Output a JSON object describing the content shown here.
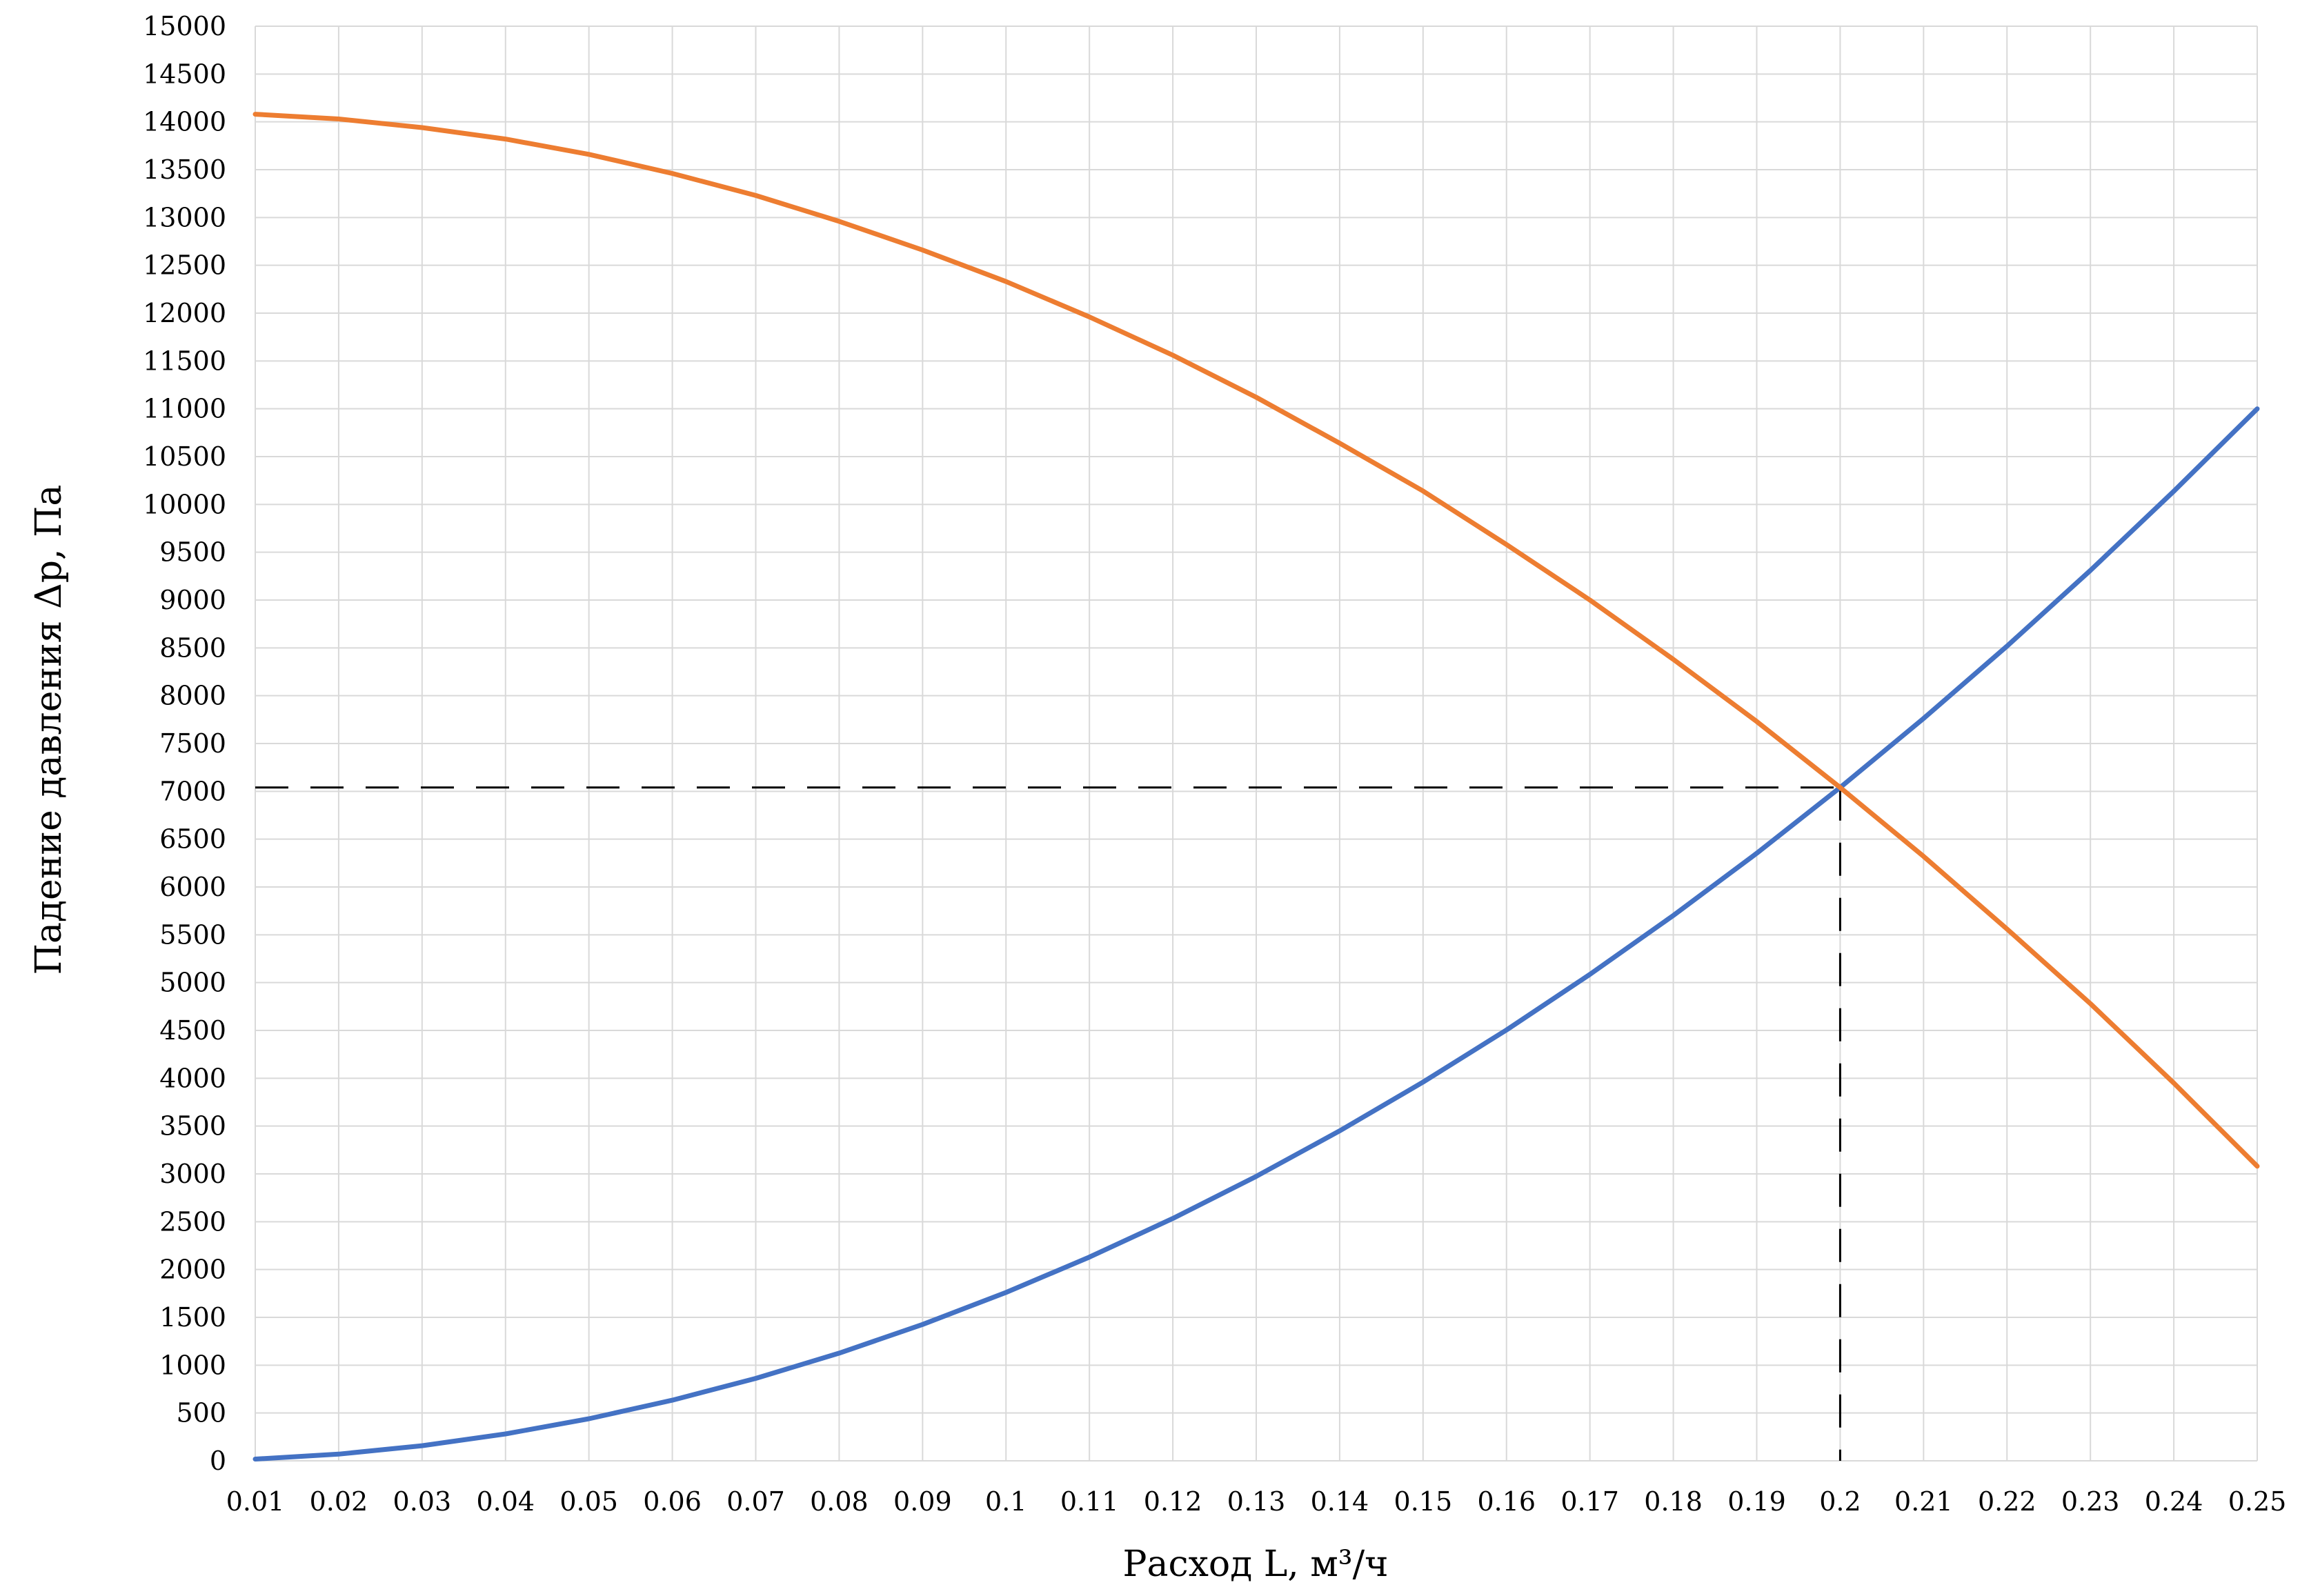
{
  "chart_data": {
    "type": "line",
    "xlabel": "Расход L, м³/ч",
    "ylabel": "Падение давления Δp, Па",
    "x": [
      0.01,
      0.02,
      0.03,
      0.04,
      0.05,
      0.06,
      0.07,
      0.08,
      0.09,
      0.1,
      0.11,
      0.12,
      0.13,
      0.14,
      0.15,
      0.16,
      0.17,
      0.18,
      0.19,
      0.2,
      0.21,
      0.22,
      0.23,
      0.24,
      0.25
    ],
    "x_tick_labels": [
      "0.01",
      "0.02",
      "0.03",
      "0.04",
      "0.05",
      "0.06",
      "0.07",
      "0.08",
      "0.09",
      "0.1",
      "0.11",
      "0.12",
      "0.13",
      "0.14",
      "0.15",
      "0.16",
      "0.17",
      "0.18",
      "0.19",
      "0.2",
      "0.21",
      "0.22",
      "0.23",
      "0.24",
      "0.25"
    ],
    "y_tick_labels": [
      "0",
      "500",
      "1000",
      "1500",
      "2000",
      "2500",
      "3000",
      "3500",
      "4000",
      "4500",
      "5000",
      "5500",
      "6000",
      "6500",
      "7000",
      "7500",
      "8000",
      "8500",
      "9000",
      "9500",
      "10000",
      "10500",
      "11000",
      "11500",
      "12000",
      "12500",
      "13000",
      "13500",
      "14000",
      "14500",
      "15000"
    ],
    "ylim": [
      0,
      15000
    ],
    "grid": true,
    "series": [
      {
        "color": "#4472C4",
        "values": [
          18,
          70,
          158,
          281,
          440,
          634,
          862,
          1126,
          1426,
          1760,
          2130,
          2534,
          2974,
          3450,
          3960,
          4505,
          5086,
          5702,
          6353,
          7040,
          7762,
          8518,
          9310,
          10138,
          11000
        ]
      },
      {
        "color": "#ED7D31",
        "values": [
          14080,
          14030,
          13940,
          13820,
          13660,
          13460,
          13230,
          12960,
          12660,
          12330,
          11960,
          11560,
          11120,
          10640,
          10140,
          9580,
          9000,
          8380,
          7730,
          7040,
          6320,
          5560,
          4780,
          3950,
          3080
        ]
      }
    ],
    "guide_lines": {
      "style": "dashed",
      "color": "#000000",
      "x": 0.2,
      "y": 7040
    }
  }
}
